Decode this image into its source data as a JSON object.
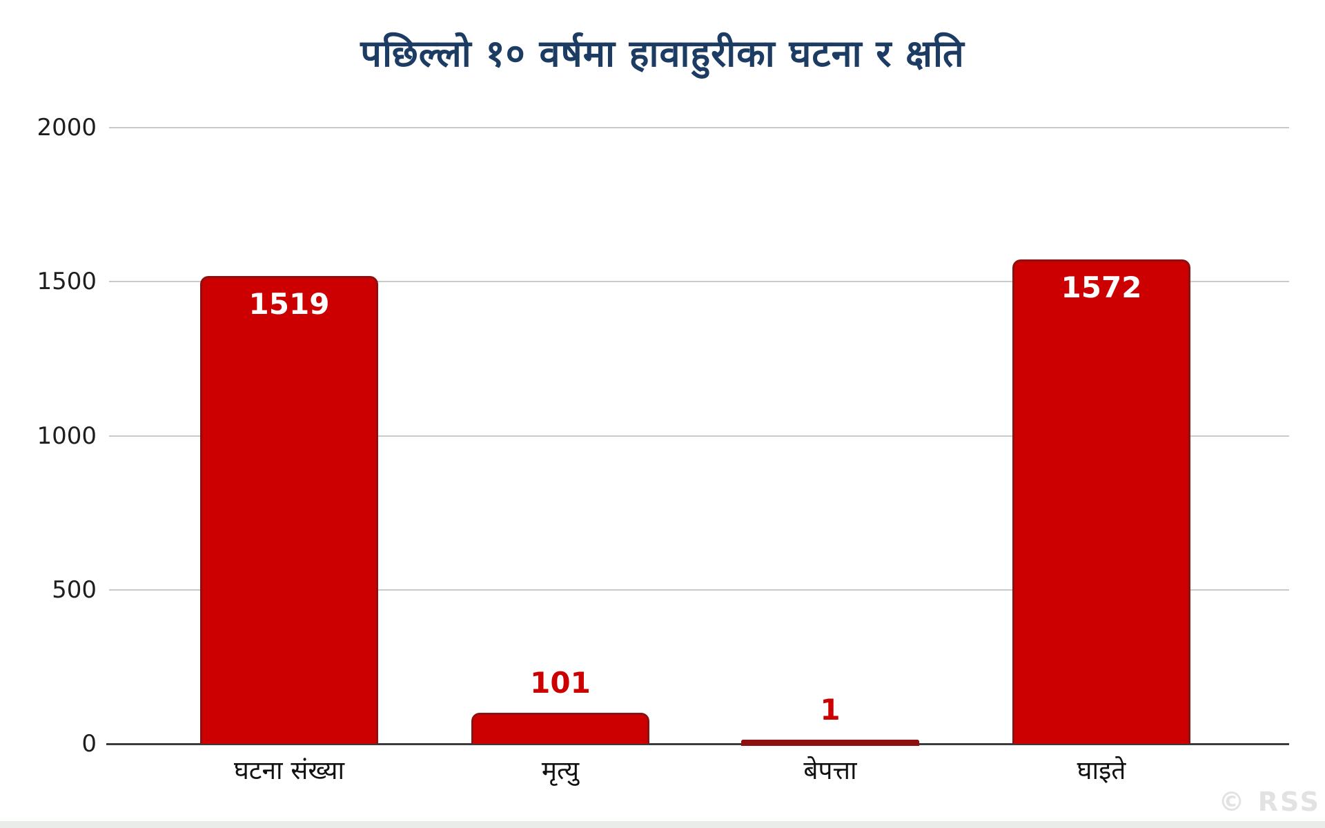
{
  "title": "पछिल्लो १० वर्षमा हावाहुरीका घटना र क्षति",
  "watermark": "© RSS",
  "chart_data": {
    "type": "bar",
    "title": "पछिल्लो १० वर्षमा हावाहुरीका घटना र क्षति",
    "categories": [
      "घटना संख्या",
      "मृत्यु",
      "बेपत्ता",
      "घाइते"
    ],
    "values": [
      1519,
      101,
      1,
      1572
    ],
    "value_labels": [
      "1519",
      "101",
      "1",
      "1572"
    ],
    "xlabel": "",
    "ylabel": "",
    "ylim": [
      0,
      2000
    ],
    "yticks": [
      0,
      500,
      1000,
      1500,
      2000
    ],
    "grid": true,
    "legend": false,
    "colors": {
      "title": "#1c3c63",
      "bar_fill": "#cc0000",
      "bar_border": "#8e1111",
      "value_label_inside": "#ffffff",
      "value_label_outside": "#cc0000",
      "gridline": "#c9c9c9",
      "axis": "#3b3b3b",
      "tick_label": "#1e1e1e",
      "watermark": "#e2e2e2"
    }
  }
}
